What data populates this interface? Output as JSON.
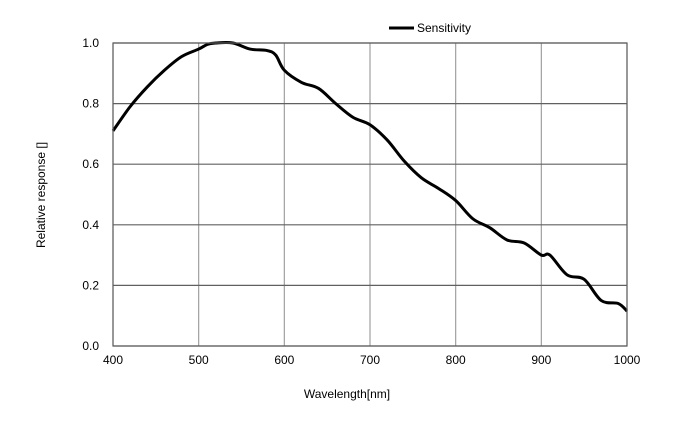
{
  "chart_data": {
    "type": "line",
    "title": "",
    "xlabel": "Wavelength[nm]",
    "ylabel": "Relative response []",
    "xlim": [
      400,
      1000
    ],
    "ylim": [
      0,
      1.0
    ],
    "xticks": [
      "400",
      "500",
      "600",
      "700",
      "800",
      "900",
      "1000"
    ],
    "yticks": [
      "0.0",
      "0.2",
      "0.4",
      "0.6",
      "0.8",
      "1.0"
    ],
    "grid": true,
    "legend_position": "top",
    "line_color": "#000000",
    "grid_color": "#a0a0a0",
    "series": [
      {
        "name": "Sensitivity",
        "x": [
          400,
          420,
          440,
          460,
          480,
          500,
          510,
          520,
          540,
          560,
          580,
          590,
          600,
          620,
          640,
          660,
          680,
          700,
          720,
          740,
          760,
          780,
          800,
          820,
          840,
          860,
          880,
          900,
          910,
          930,
          950,
          970,
          990,
          1000
        ],
        "y": [
          0.71,
          0.79,
          0.855,
          0.91,
          0.955,
          0.98,
          0.995,
          1.0,
          1.0,
          0.98,
          0.975,
          0.96,
          0.91,
          0.87,
          0.85,
          0.8,
          0.755,
          0.73,
          0.68,
          0.61,
          0.555,
          0.52,
          0.48,
          0.42,
          0.39,
          0.35,
          0.34,
          0.3,
          0.3,
          0.235,
          0.22,
          0.15,
          0.14,
          0.115
        ]
      }
    ]
  }
}
